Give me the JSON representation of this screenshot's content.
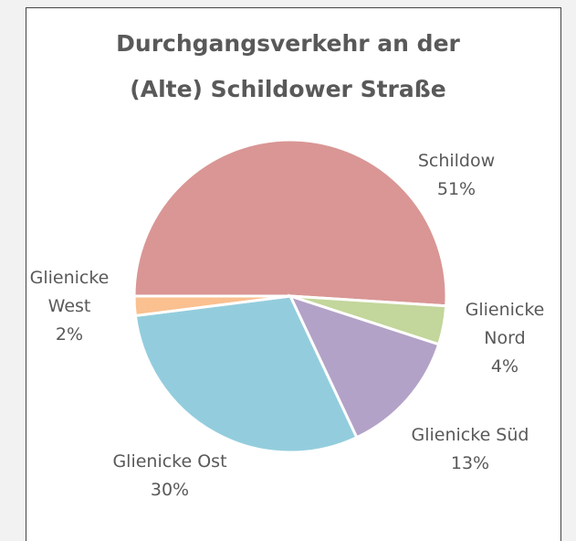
{
  "chart_data": {
    "type": "pie",
    "title": [
      "Durchgangsverkehr an der",
      "(Alte) Schildower Straße"
    ],
    "categories": [
      "Schildow",
      "Glienicke Nord",
      "Glienicke Süd",
      "Glienicke Ost",
      "Glienicke West"
    ],
    "values": [
      51,
      4,
      13,
      30,
      2
    ],
    "value_labels": [
      "51%",
      "4%",
      "13%",
      "30%",
      "2%"
    ],
    "colors": [
      "#d99694",
      "#c3d69b",
      "#b3a2c7",
      "#93cddd",
      "#fac090"
    ]
  }
}
